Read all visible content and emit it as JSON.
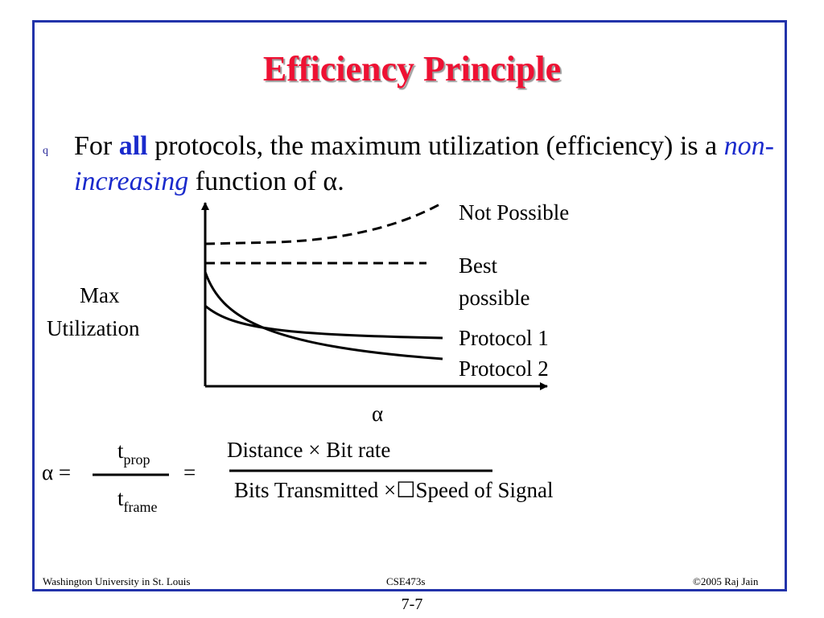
{
  "slide": {
    "title": "Efficiency Principle",
    "bullet": {
      "marker": "q",
      "pre": "For ",
      "bold_word": "all",
      "mid": " protocols, the maximum utilization (efficiency) is a ",
      "italic_phrase": "non-increasing",
      "post": " function of α."
    }
  },
  "chart_data": {
    "type": "line",
    "ylabel_line1": "Max",
    "ylabel_line2": "Utilization",
    "xlabel": "α",
    "series": [
      {
        "name": "Not Possible"
      },
      {
        "name": "Best possible"
      },
      {
        "name": "Protocol 1"
      },
      {
        "name": "Protocol 2"
      }
    ],
    "labels": {
      "not_possible": "Not Possible",
      "best_line1": "Best",
      "best_line2": "possible",
      "protocol1": "Protocol 1",
      "protocol2": "Protocol 2"
    }
  },
  "formula": {
    "lhs": "α =",
    "t1": "t",
    "t1_sub": "prop",
    "t2": "t",
    "t2_sub": "frame",
    "eq": "=",
    "numerator": "Distance × Bit rate",
    "denominator": "Bits Transmitted ×☐Speed of Signal"
  },
  "footer": {
    "left": "Washington University in St. Louis",
    "center": "CSE473s",
    "right": "©2005 Raj Jain",
    "page": "7-7"
  }
}
